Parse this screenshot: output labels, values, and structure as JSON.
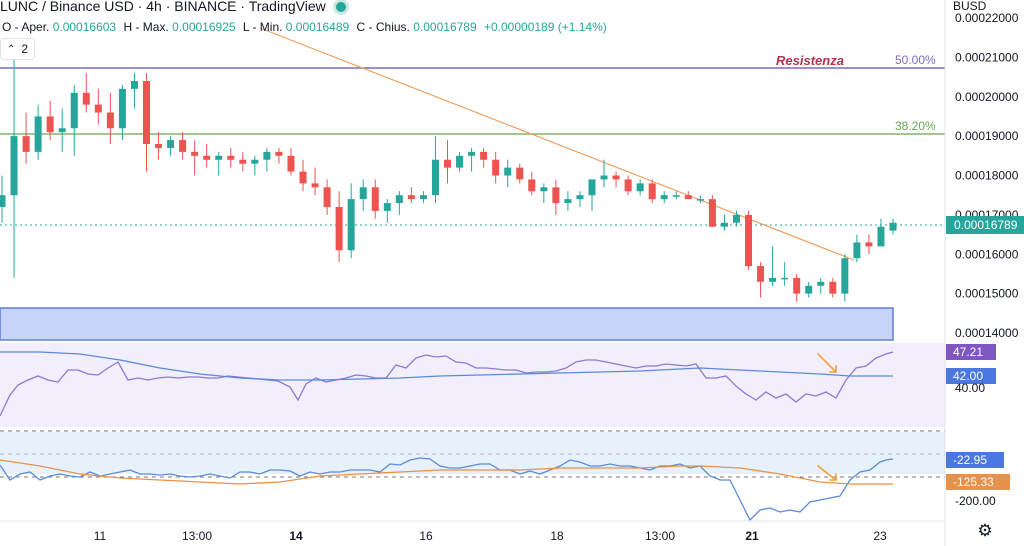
{
  "header": {
    "title": "LUNC / Binance USD · 4h · BINANCE · TradingView",
    "open_label": "O - Aper.",
    "open_value": "0.00016603",
    "high_label": "H - Max.",
    "high_value": "0.00016925",
    "low_label": "L - Min.",
    "low_value": "0.00016489",
    "close_label": "C - Chius.",
    "close_value": "0.00016789",
    "change_value": "+0.00000189 (+1.14%)",
    "indicator_count": "2",
    "collapse_icon": "chevron-up-icon",
    "status_icon": "live-dot-icon"
  },
  "price_axis": {
    "currency": "BUSD",
    "ticks": [
      "0.00022000",
      "0.00021000",
      "0.00020000",
      "0.00019000",
      "0.00018000",
      "0.00017000",
      "0.00016000",
      "0.00015000",
      "0.00014000"
    ],
    "current_price_label": "0.00016789"
  },
  "annotations": {
    "resistance_label": "Resistenza",
    "fib_50_label": "50.00%",
    "fib_382_label": "38.20%"
  },
  "indicator_1": {
    "tick": "40.00",
    "value_a": "47.21",
    "value_b": "42.00"
  },
  "indicator_2": {
    "tick": "-200.00",
    "value_a": "-22.95",
    "value_b": "-125.33"
  },
  "time_axis": {
    "labels": [
      "11",
      "13:00",
      "14",
      "16",
      "18",
      "13:00",
      "21",
      "23"
    ],
    "bold": [
      false,
      false,
      true,
      false,
      false,
      false,
      true,
      false
    ]
  },
  "colors": {
    "up": "#26a69a",
    "down": "#ef5350",
    "trendline": "#f0a060",
    "resistance": "#7e6cc0",
    "fib382": "#6aa84f",
    "support_zone": "#c6d4fa",
    "rsi_line": "#8c7ad0",
    "rsi_ma": "#5b8bd8",
    "cci_line": "#5b8bd8",
    "cci_ma": "#e8914a",
    "arrow": "#f0a54a"
  },
  "chart_data": {
    "type": "candlestick",
    "title": "LUNC / Binance USD · 4h · BINANCE",
    "ylim": [
      0.000135,
      0.00022
    ],
    "levels": {
      "fib_50": 0.0002075,
      "fib_382": 0.000191,
      "support_top": 0.0001465,
      "support_bottom": 0.000138,
      "current": 0.00016789
    },
    "trendline": [
      [
        0,
        0.000235
      ],
      [
        854,
        0.0001585
      ]
    ],
    "candles_ohlc": [
      [
        0.000172,
        0.00018,
        0.000168,
        0.000175
      ],
      [
        0.000175,
        0.00021,
        0.000154,
        0.00019
      ],
      [
        0.00019,
        0.000196,
        0.000183,
        0.000186
      ],
      [
        0.000186,
        0.000198,
        0.000184,
        0.000195
      ],
      [
        0.000195,
        0.000199,
        0.000189,
        0.000191
      ],
      [
        0.000191,
        0.000197,
        0.000186,
        0.000192
      ],
      [
        0.000192,
        0.000203,
        0.000185,
        0.000201
      ],
      [
        0.000201,
        0.000206,
        0.000196,
        0.000198
      ],
      [
        0.000198,
        0.000202,
        0.000193,
        0.000196
      ],
      [
        0.000196,
        0.000201,
        0.000188,
        0.000192
      ],
      [
        0.000192,
        0.000203,
        0.000189,
        0.000202
      ],
      [
        0.000202,
        0.000206,
        0.000197,
        0.000204
      ],
      [
        0.000204,
        0.000206,
        0.000181,
        0.000188
      ],
      [
        0.000188,
        0.000191,
        0.000184,
        0.000187
      ],
      [
        0.000187,
        0.00019,
        0.000185,
        0.000189
      ],
      [
        0.000189,
        0.000191,
        0.000184,
        0.000186
      ],
      [
        0.000186,
        0.000189,
        0.00018,
        0.000185
      ],
      [
        0.000185,
        0.000188,
        0.000182,
        0.000184
      ],
      [
        0.000184,
        0.000186,
        0.00018,
        0.000185
      ],
      [
        0.000185,
        0.000187,
        0.000182,
        0.000184
      ],
      [
        0.000184,
        0.000186,
        0.000181,
        0.000183
      ],
      [
        0.000183,
        0.000185,
        0.00018,
        0.000184
      ],
      [
        0.000184,
        0.000187,
        0.000181,
        0.000186
      ],
      [
        0.000186,
        0.000187,
        0.000183,
        0.000185
      ],
      [
        0.000185,
        0.000187,
        0.00018,
        0.000181
      ],
      [
        0.000181,
        0.000184,
        0.000176,
        0.000178
      ],
      [
        0.000178,
        0.000182,
        0.000175,
        0.000177
      ],
      [
        0.000177,
        0.000179,
        0.00017,
        0.000172
      ],
      [
        0.000172,
        0.000176,
        0.000158,
        0.000161
      ],
      [
        0.000161,
        0.000178,
        0.000159,
        0.000174
      ],
      [
        0.000174,
        0.000179,
        0.000171,
        0.000177
      ],
      [
        0.000177,
        0.000179,
        0.000169,
        0.000171
      ],
      [
        0.000171,
        0.000174,
        0.000168,
        0.000173
      ],
      [
        0.000173,
        0.000176,
        0.00017,
        0.000175
      ],
      [
        0.000175,
        0.000177,
        0.000173,
        0.000174
      ],
      [
        0.000174,
        0.000176,
        0.000173,
        0.000175
      ],
      [
        0.000175,
        0.00019,
        0.000173,
        0.000184
      ],
      [
        0.000184,
        0.000189,
        0.000178,
        0.000182
      ],
      [
        0.000182,
        0.000186,
        0.000181,
        0.000185
      ],
      [
        0.000185,
        0.000187,
        0.000181,
        0.000186
      ],
      [
        0.000186,
        0.000187,
        0.000182,
        0.000184
      ],
      [
        0.000184,
        0.000186,
        0.000178,
        0.00018
      ],
      [
        0.00018,
        0.000184,
        0.000177,
        0.000182
      ],
      [
        0.000182,
        0.000183,
        0.000178,
        0.000179
      ],
      [
        0.000179,
        0.000181,
        0.000175,
        0.000176
      ],
      [
        0.000176,
        0.000178,
        0.000173,
        0.000177
      ],
      [
        0.000177,
        0.000179,
        0.00017,
        0.000173
      ],
      [
        0.000173,
        0.000176,
        0.000171,
        0.000174
      ],
      [
        0.000174,
        0.000176,
        0.000172,
        0.000175
      ],
      [
        0.000175,
        0.000178,
        0.000171,
        0.000179
      ],
      [
        0.000179,
        0.000184,
        0.000177,
        0.00018
      ],
      [
        0.00018,
        0.000181,
        0.000177,
        0.000179
      ],
      [
        0.000179,
        0.00018,
        0.000175,
        0.000176
      ],
      [
        0.000176,
        0.000179,
        0.000175,
        0.000178
      ],
      [
        0.000178,
        0.000179,
        0.000173,
        0.000174
      ],
      [
        0.000174,
        0.000176,
        0.000173,
        0.000175
      ],
      [
        0.000175,
        0.000176,
        0.000174,
        0.000175
      ],
      [
        0.000175,
        0.000176,
        0.000174,
        0.000174
      ],
      [
        0.000174,
        0.000175,
        0.000173,
        0.000174
      ],
      [
        0.000174,
        0.000175,
        0.000167,
        0.000167
      ],
      [
        0.000167,
        0.00017,
        0.000166,
        0.000168
      ],
      [
        0.000168,
        0.000171,
        0.000167,
        0.00017
      ],
      [
        0.00017,
        0.000171,
        0.000156,
        0.000157
      ],
      [
        0.000157,
        0.000158,
        0.000149,
        0.000153
      ],
      [
        0.000153,
        0.000162,
        0.000152,
        0.000154
      ],
      [
        0.000154,
        0.000158,
        0.000152,
        0.000154
      ],
      [
        0.000154,
        0.000155,
        0.000148,
        0.00015
      ],
      [
        0.00015,
        0.000153,
        0.000149,
        0.000152
      ],
      [
        0.000152,
        0.000154,
        0.00015,
        0.000153
      ],
      [
        0.000153,
        0.000154,
        0.000149,
        0.00015
      ],
      [
        0.00015,
        0.00016,
        0.000148,
        0.000159
      ],
      [
        0.000159,
        0.000165,
        0.000158,
        0.000163
      ],
      [
        0.000163,
        0.000165,
        0.00016,
        0.000162
      ],
      [
        0.000162,
        0.000169,
        0.000162,
        0.000167
      ],
      [
        0.000166,
        0.000169,
        0.000165,
        0.000168
      ]
    ]
  }
}
